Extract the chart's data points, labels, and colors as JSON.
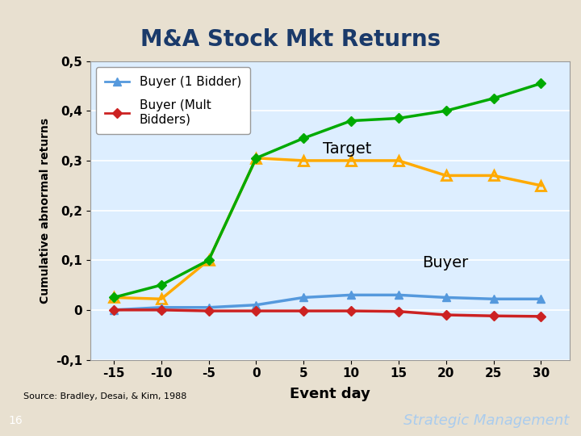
{
  "title": "M&A Stock Mkt Returns",
  "ylabel": "Cumulative abnormal returns",
  "xlabel": "Event day",
  "x": [
    -15,
    -10,
    -5,
    0,
    5,
    10,
    15,
    20,
    25,
    30
  ],
  "target_yellow": [
    0.025,
    0.022,
    0.1,
    0.305,
    0.3,
    0.3,
    0.3,
    0.27,
    0.27,
    0.25
  ],
  "buyer_1bidder": [
    0.0,
    0.005,
    0.005,
    0.01,
    0.025,
    0.03,
    0.03,
    0.025,
    0.022,
    0.022
  ],
  "buyer_mult": [
    0.0,
    0.0,
    -0.002,
    -0.002,
    -0.002,
    -0.002,
    -0.003,
    -0.01,
    -0.012,
    -0.013
  ],
  "target_green": [
    0.025,
    0.05,
    0.1,
    0.305,
    0.345,
    0.38,
    0.385,
    0.4,
    0.425,
    0.455
  ],
  "ylim": [
    -0.1,
    0.5
  ],
  "yticks": [
    -0.1,
    0.0,
    0.1,
    0.2,
    0.3,
    0.4,
    0.5
  ],
  "ytick_labels": [
    "-0,1",
    "0",
    "0,1",
    "0,2",
    "0,3",
    "0,4",
    "0,5"
  ],
  "xticks": [
    -15,
    -10,
    -5,
    0,
    5,
    10,
    15,
    20,
    25,
    30
  ],
  "color_target_green": "#00aa00",
  "color_target_yellow": "#ffaa00",
  "color_buyer_1bidder": "#5599dd",
  "color_buyer_mult": "#cc2222",
  "bg_color": "#ddeeff",
  "outer_bg": "#e8e0d0",
  "footer_bg": "#1a3a6a",
  "title_color": "#1a3a6a",
  "source_text": "Source: Bradley, Desai, & Kim, 1988",
  "footer_text": "Strategic Management",
  "page_num": "16",
  "annotation_target": "Target",
  "annotation_buyer": "Buyer",
  "legend_1bidder": "Buyer (1 Bidder)",
  "legend_mult": "Buyer (Mult\nBidders)"
}
